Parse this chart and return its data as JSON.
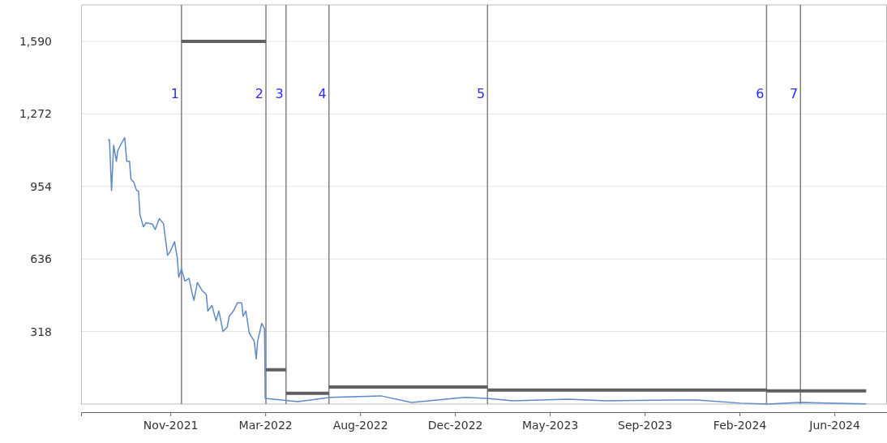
{
  "chart_data": {
    "type": "line",
    "xlim": [
      "2021-06-25",
      "2024-09-01"
    ],
    "ylim": [
      0,
      1750
    ],
    "xticks": [
      {
        "value": "2021-11-01",
        "label": "Nov-2021"
      },
      {
        "value": "2022-03-18",
        "label": "Mar-2022"
      },
      {
        "value": "2022-08-02",
        "label": "Aug-2022"
      },
      {
        "value": "2022-12-17",
        "label": "Dec-2022"
      },
      {
        "value": "2023-05-03",
        "label": "May-2023"
      },
      {
        "value": "2023-09-17",
        "label": "Sep-2023"
      },
      {
        "value": "2024-02-01",
        "label": "Feb-2024"
      },
      {
        "value": "2024-06-17",
        "label": "Jun-2024"
      }
    ],
    "yticks": [
      318,
      636,
      954,
      {
        "value": 1272,
        "label": "1,272"
      },
      {
        "value": 1590,
        "label": "1,590"
      }
    ],
    "grid": "y",
    "series": [
      {
        "color": "#5b8ac6",
        "x": [
          "2021-08-03",
          "2021-08-05",
          "2021-08-08",
          "2021-08-11",
          "2021-08-15",
          "2021-08-17",
          "2021-08-23",
          "2021-08-27",
          "2021-08-30",
          "2021-09-03",
          "2021-09-05",
          "2021-09-09",
          "2021-09-13",
          "2021-09-16",
          "2021-09-18",
          "2021-09-23",
          "2021-09-27",
          "2021-10-06",
          "2021-10-10",
          "2021-10-16",
          "2021-10-22",
          "2021-10-28",
          "2021-11-01",
          "2021-11-07",
          "2021-11-11",
          "2021-11-13",
          "2021-11-17",
          "2021-11-22",
          "2021-11-28",
          "2021-12-02",
          "2021-12-05",
          "2021-12-10",
          "2021-12-17",
          "2021-12-23",
          "2021-12-25",
          "2021-12-31",
          "2022-01-06",
          "2022-01-10",
          "2022-01-16",
          "2022-01-22",
          "2022-01-25",
          "2022-01-31",
          "2022-02-06",
          "2022-02-12",
          "2022-02-14",
          "2022-02-18",
          "2022-02-23",
          "2022-03-02",
          "2022-03-05",
          "2022-03-07",
          "2022-03-13",
          "2022-03-17",
          "2022-03-18",
          "2022-05-04",
          "2022-06-20",
          "2022-09-01",
          "2022-10-15",
          "2022-12-31",
          "2023-02-01",
          "2023-03-11",
          "2023-05-29",
          "2023-07-23",
          "2023-10-28",
          "2023-12-02",
          "2024-02-02",
          "2024-03-13",
          "2024-04-29",
          "2024-08-02"
        ],
        "values": [
          1159,
          1159,
          936,
          1135,
          1064,
          1111,
          1147,
          1168,
          1064,
          1064,
          986,
          974,
          938,
          932,
          831,
          777,
          795,
          789,
          765,
          813,
          791,
          652,
          670,
          712,
          641,
          556,
          592,
          539,
          551,
          491,
          455,
          533,
          497,
          479,
          408,
          432,
          365,
          408,
          319,
          337,
          385,
          408,
          444,
          444,
          385,
          408,
          311,
          276,
          198,
          276,
          354,
          330,
          25,
          11,
          29,
          36,
          7,
          29,
          25,
          14,
          21,
          14,
          18,
          18,
          4,
          0,
          7,
          1
        ]
      },
      {
        "type": "step",
        "color": "#606060",
        "x": [
          "2021-11-17",
          "2022-03-19",
          "2022-04-17",
          "2022-06-18",
          "2023-02-02",
          "2024-03-11",
          "2024-08-02"
        ],
        "values": [
          1590,
          150,
          47,
          75,
          61,
          58,
          58
        ]
      }
    ],
    "ref_lines": [
      {
        "axis": "x",
        "value": "2021-11-17",
        "label": "1",
        "color": "#808080"
      },
      {
        "axis": "x",
        "value": "2022-03-19",
        "label": "2",
        "color": "#808080"
      },
      {
        "axis": "x",
        "value": "2022-04-17",
        "label": "3",
        "color": "#808080"
      },
      {
        "axis": "x",
        "value": "2022-06-18",
        "label": "4",
        "color": "#808080"
      },
      {
        "axis": "x",
        "value": "2023-02-02",
        "label": "5",
        "color": "#808080"
      },
      {
        "axis": "x",
        "value": "2024-03-11",
        "label": "6",
        "color": "#808080"
      },
      {
        "axis": "x",
        "value": "2024-04-29",
        "label": "7",
        "color": "#808080"
      }
    ]
  }
}
